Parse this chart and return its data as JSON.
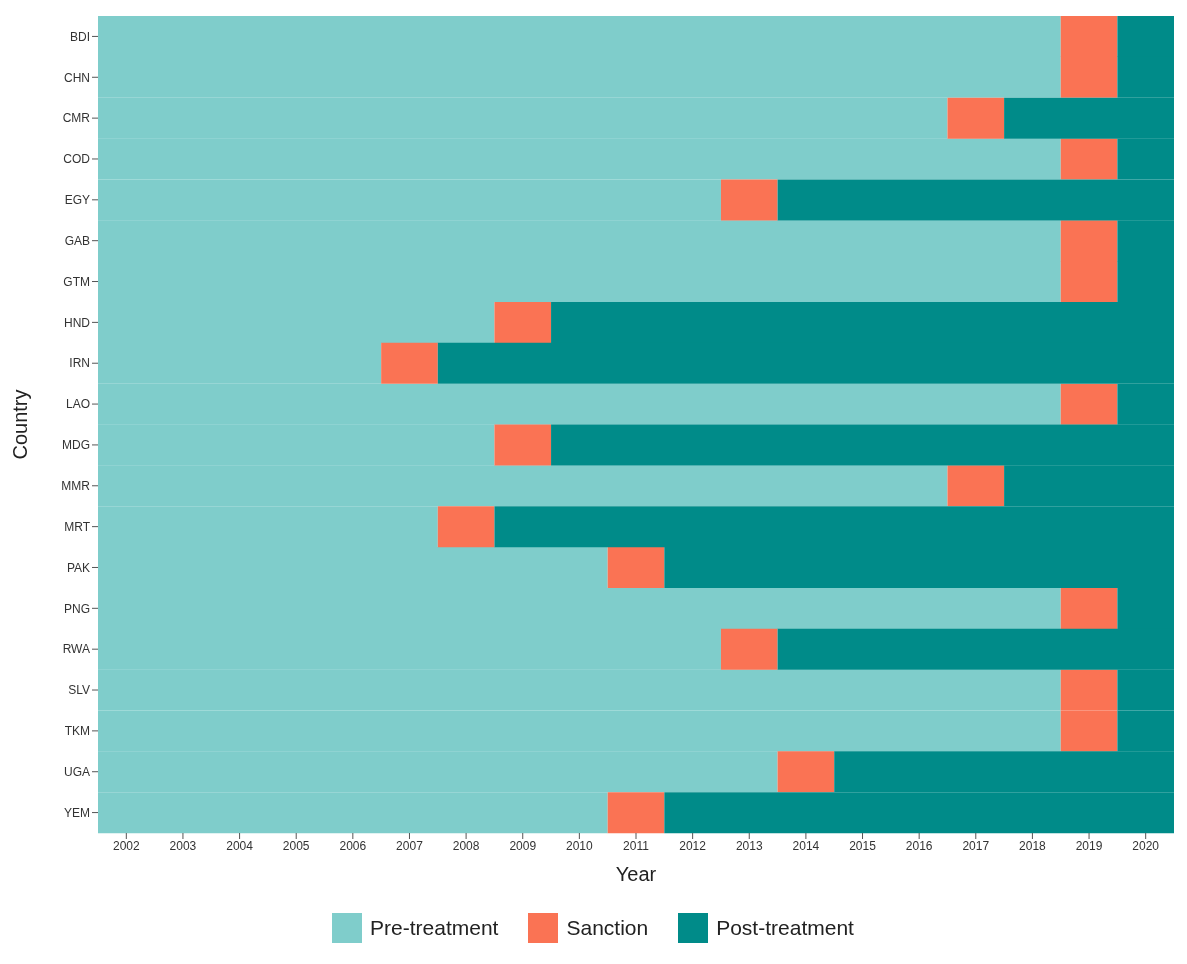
{
  "chart_data": {
    "type": "bar",
    "orientation": "horizontal",
    "xlabel": "Year",
    "ylabel": "Country",
    "categories": [
      "BDI",
      "CHN",
      "CMR",
      "COD",
      "EGY",
      "GAB",
      "GTM",
      "HND",
      "IRN",
      "LAO",
      "MDG",
      "MMR",
      "MRT",
      "PAK",
      "PNG",
      "RWA",
      "SLV",
      "TKM",
      "UGA",
      "YEM"
    ],
    "series": [
      {
        "name": "Pre-treatment",
        "color": "#7fcdcb",
        "base": [
          2001.5,
          2001.5,
          2001.5,
          2001.5,
          2001.5,
          2001.5,
          2001.5,
          2001.5,
          2001.5,
          2001.5,
          2001.5,
          2001.5,
          2001.5,
          2001.5,
          2001.5,
          2001.5,
          2001.5,
          2001.5,
          2001.5,
          2001.5
        ],
        "values": [
          17,
          17,
          15,
          17,
          11,
          17,
          17,
          7,
          5,
          17,
          7,
          15,
          6,
          9,
          17,
          11,
          17,
          17,
          12,
          9
        ]
      },
      {
        "name": "Sanction",
        "color": "#fa7354",
        "base": [
          2018.5,
          2018.5,
          2016.5,
          2018.5,
          2012.5,
          2018.5,
          2018.5,
          2008.5,
          2006.5,
          2018.5,
          2008.5,
          2016.5,
          2007.5,
          2010.5,
          2018.5,
          2012.5,
          2018.5,
          2018.5,
          2013.5,
          2010.5
        ],
        "values": [
          1,
          1,
          1,
          1,
          1,
          1,
          1,
          1,
          1,
          1,
          1,
          1,
          1,
          1,
          1,
          1,
          1,
          1,
          1,
          1
        ]
      },
      {
        "name": "Post-treatment",
        "color": "#008b89",
        "base": [
          2019.5,
          2019.5,
          2017.5,
          2019.5,
          2013.5,
          2019.5,
          2019.5,
          2009.5,
          2007.5,
          2019.5,
          2009.5,
          2017.5,
          2008.5,
          2011.5,
          2019.5,
          2013.5,
          2019.5,
          2019.5,
          2014.5,
          2011.5
        ],
        "values": [
          1,
          1,
          3,
          1,
          7,
          1,
          1,
          11,
          13,
          1,
          11,
          3,
          12,
          9,
          1,
          7,
          1,
          1,
          6,
          9
        ]
      }
    ],
    "xlim": [
      2001.5,
      2020.5
    ],
    "xticks": [
      2002,
      2003,
      2004,
      2005,
      2006,
      2007,
      2008,
      2009,
      2010,
      2011,
      2012,
      2013,
      2014,
      2015,
      2016,
      2017,
      2018,
      2019,
      2020
    ],
    "legend": "bottom"
  }
}
